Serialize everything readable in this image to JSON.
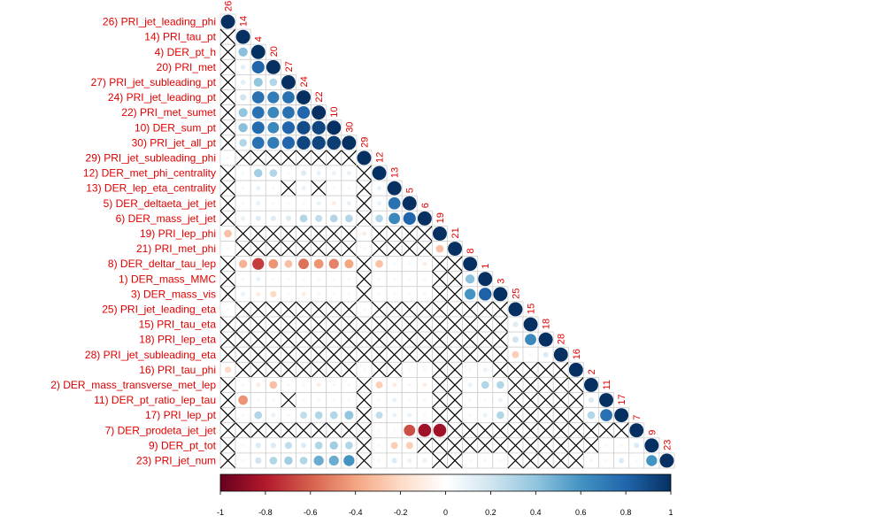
{
  "chart_data": {
    "type": "heatmap",
    "style": "correlation-matrix-lower-triangle-circles",
    "value_range": [
      -1,
      1
    ],
    "insignificant_marker": "cross",
    "labels": [
      "26) PRI_jet_leading_phi",
      "14) PRI_tau_pt",
      "4) DER_pt_h",
      "20) PRI_met",
      "27) PRI_jet_subleading_pt",
      "24) PRI_jet_leading_pt",
      "22) PRI_met_sumet",
      "10) DER_sum_pt",
      "30) PRI_jet_all_pt",
      "29) PRI_jet_subleading_phi",
      "12) DER_met_phi_centrality",
      "13) DER_lep_eta_centrality",
      "5) DER_deltaeta_jet_jet",
      "6) DER_mass_jet_jet",
      "19) PRI_lep_phi",
      "21) PRI_met_phi",
      "8) DER_deltar_tau_lep",
      "1) DER_mass_MMC",
      "3) DER_mass_vis",
      "25) PRI_jet_leading_eta",
      "15) PRI_tau_eta",
      "18) PRI_lep_eta",
      "28) PRI_jet_subleading_eta",
      "16) PRI_tau_phi",
      "2) DER_mass_transverse_met_lep",
      "11) DER_pt_ratio_lep_tau",
      "17) PRI_lep_pt",
      "7) DER_prodeta_jet_jet",
      "9) DER_pt_tot",
      "23) PRI_jet_num"
    ],
    "column_labels": [
      "26",
      "14",
      "4",
      "20",
      "27",
      "24",
      "22",
      "10",
      "30",
      "29",
      "12",
      "13",
      "5",
      "6",
      "19",
      "21",
      "8",
      "1",
      "3",
      "25",
      "15",
      "18",
      "28",
      "16",
      "2",
      "11",
      "17",
      "7",
      "9",
      "23"
    ],
    "colorbar_ticks": [
      "-1",
      "-0.8",
      "-0.6",
      "-0.4",
      "-0.2",
      "0",
      "0.2",
      "0.4",
      "0.6",
      "0.8",
      "1"
    ],
    "colorbar_colors": [
      "#67001F",
      "#B2182B",
      "#D6604D",
      "#F4A582",
      "#FDDBC7",
      "#FFFFFF",
      "#D1E5F0",
      "#92C5DE",
      "#4393C3",
      "#2166AC",
      "#053061"
    ],
    "rows": [
      [
        1
      ],
      [
        null,
        1
      ],
      [
        null,
        0.42,
        1
      ],
      [
        null,
        0.12,
        0.8,
        1
      ],
      [
        null,
        0.12,
        0.4,
        0.3,
        1
      ],
      [
        null,
        0.2,
        0.75,
        0.7,
        0.75,
        1
      ],
      [
        null,
        0.4,
        0.75,
        0.65,
        0.75,
        0.8,
        1
      ],
      [
        null,
        0.42,
        0.78,
        0.65,
        0.8,
        0.9,
        0.92,
        1
      ],
      [
        null,
        0.3,
        0.75,
        0.7,
        0.8,
        0.92,
        0.92,
        0.95,
        1
      ],
      [
        0.05,
        null,
        null,
        null,
        null,
        null,
        null,
        null,
        null,
        1
      ],
      [
        null,
        0.05,
        0.35,
        0.3,
        0.05,
        0.15,
        0.1,
        0.1,
        0.1,
        null,
        1
      ],
      [
        null,
        0.05,
        0.1,
        0.05,
        null,
        0.1,
        null,
        0.05,
        0.05,
        null,
        0.1,
        1
      ],
      [
        null,
        0.05,
        0.1,
        0.05,
        0.05,
        -0.05,
        0.1,
        -0.1,
        0.1,
        null,
        0.1,
        0.75,
        1
      ],
      [
        null,
        0.1,
        0.15,
        0.15,
        0.15,
        0.3,
        0.25,
        0.3,
        0.3,
        null,
        0.3,
        0.65,
        0.8,
        1
      ],
      [
        -0.3,
        null,
        null,
        null,
        null,
        null,
        null,
        null,
        null,
        -0.1,
        null,
        null,
        null,
        null,
        1
      ],
      [
        0.05,
        null,
        null,
        null,
        null,
        null,
        null,
        null,
        null,
        0.05,
        null,
        null,
        null,
        null,
        -0.3,
        1
      ],
      [
        null,
        -0.35,
        -0.7,
        -0.45,
        -0.3,
        -0.55,
        -0.45,
        -0.5,
        -0.4,
        null,
        -0.3,
        0.05,
        0.05,
        -0.1,
        null,
        null,
        1
      ],
      [
        null,
        -0.05,
        0.1,
        0.05,
        0.05,
        0.05,
        0.05,
        0.05,
        0.05,
        null,
        0.05,
        0.05,
        0.05,
        0.05,
        null,
        null,
        0.42,
        1
      ],
      [
        null,
        0.1,
        -0.1,
        -0.2,
        -0.05,
        -0.1,
        -0.05,
        -0.05,
        -0.05,
        null,
        0.05,
        0.05,
        0.05,
        0.05,
        null,
        null,
        0.6,
        0.82,
        1
      ],
      [
        0.05,
        null,
        null,
        null,
        null,
        null,
        null,
        null,
        null,
        0.05,
        null,
        null,
        null,
        null,
        null,
        null,
        null,
        null,
        null,
        1
      ],
      [
        null,
        null,
        null,
        null,
        null,
        null,
        null,
        null,
        null,
        null,
        null,
        null,
        null,
        null,
        null,
        null,
        null,
        null,
        null,
        0.15,
        1
      ],
      [
        null,
        null,
        null,
        null,
        null,
        null,
        null,
        null,
        null,
        null,
        null,
        null,
        null,
        null,
        null,
        null,
        null,
        null,
        null,
        0.2,
        0.65,
        1
      ],
      [
        null,
        null,
        null,
        null,
        null,
        null,
        null,
        null,
        null,
        null,
        null,
        null,
        null,
        null,
        null,
        null,
        null,
        null,
        null,
        -0.25,
        0.05,
        0.15,
        1
      ],
      [
        -0.2,
        null,
        null,
        null,
        null,
        null,
        null,
        null,
        null,
        -0.05,
        null,
        null,
        0.05,
        0.05,
        null,
        null,
        0.05,
        0.1,
        null,
        null,
        null,
        null,
        null,
        1
      ],
      [
        null,
        0.05,
        -0.1,
        -0.3,
        0.05,
        -0.05,
        -0.1,
        -0.05,
        0.05,
        null,
        -0.25,
        -0.1,
        -0.05,
        -0.1,
        null,
        null,
        0.1,
        0.3,
        0.3,
        null,
        null,
        null,
        null,
        null,
        1
      ],
      [
        null,
        -0.45,
        0.05,
        0.05,
        null,
        0.05,
        0.05,
        0.05,
        0.05,
        null,
        0.05,
        0.1,
        0.05,
        0.05,
        null,
        null,
        0.05,
        -0.05,
        0.1,
        null,
        null,
        null,
        null,
        null,
        0.15,
        1
      ],
      [
        null,
        0.05,
        0.3,
        0.1,
        0.05,
        0.25,
        0.3,
        0.3,
        0.4,
        null,
        0.25,
        0.1,
        0.1,
        0.05,
        null,
        null,
        0.05,
        0.1,
        0.3,
        null,
        null,
        null,
        null,
        null,
        0.3,
        0.75,
        1
      ],
      [
        null,
        null,
        null,
        null,
        null,
        null,
        null,
        null,
        null,
        null,
        -0.05,
        -0.05,
        -0.65,
        -0.85,
        -0.85,
        null,
        null,
        null,
        null,
        null,
        null,
        null,
        null,
        null,
        null,
        null,
        null,
        1
      ],
      [
        null,
        0.05,
        0.15,
        0.15,
        0.25,
        0.15,
        0.3,
        0.35,
        0.3,
        null,
        0.05,
        -0.25,
        -0.25,
        null,
        null,
        null,
        null,
        null,
        null,
        null,
        null,
        null,
        null,
        null,
        null,
        0.05,
        0.05,
        0.15,
        1
      ],
      [
        null,
        0.05,
        0.2,
        0.3,
        0.35,
        0.3,
        0.5,
        0.5,
        0.6,
        null,
        0.05,
        0.15,
        0.1,
        0.1,
        null,
        null,
        0.05,
        0.05,
        0.05,
        null,
        null,
        null,
        null,
        null,
        0.05,
        0.05,
        0.15,
        0.05,
        0.6,
        1
      ]
    ]
  }
}
